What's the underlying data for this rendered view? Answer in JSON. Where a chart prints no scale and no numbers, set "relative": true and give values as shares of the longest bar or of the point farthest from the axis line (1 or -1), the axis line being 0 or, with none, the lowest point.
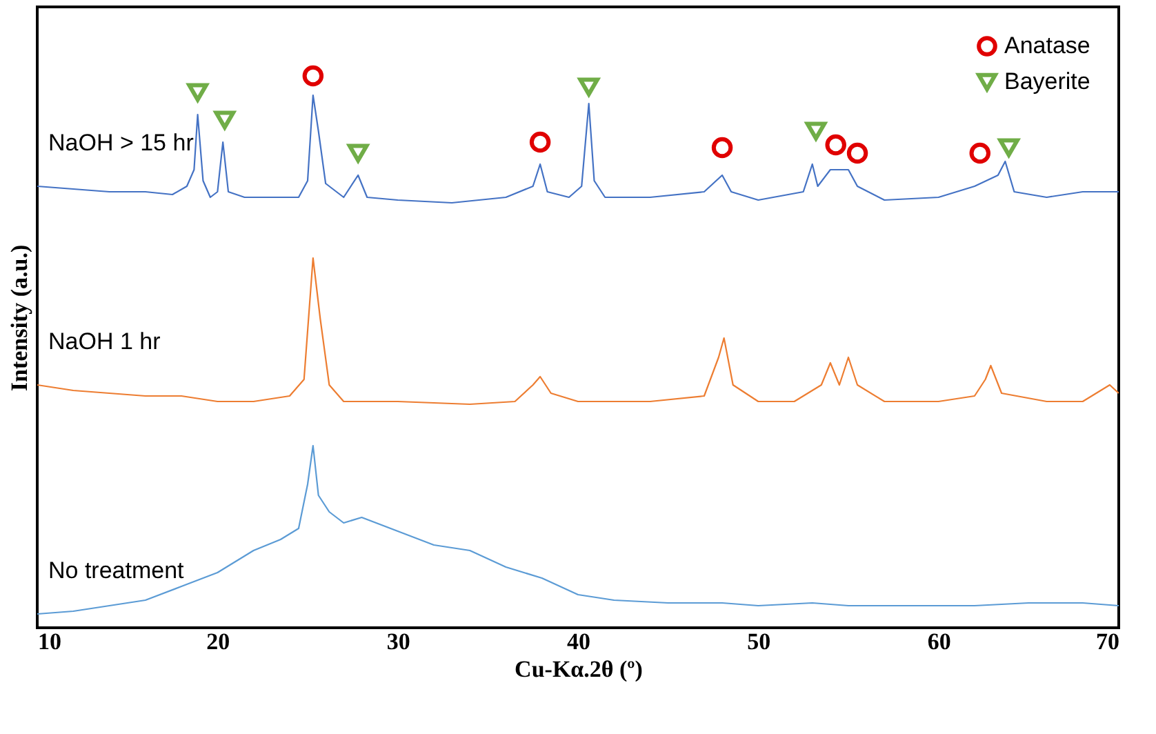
{
  "chart_data": {
    "type": "line",
    "relative": true,
    "xlabel": "Cu-Kα.2θ (º)",
    "ylabel": "Intensity (a.u.)",
    "xlim": [
      10,
      70
    ],
    "xticks": [
      10,
      20,
      30,
      40,
      50,
      60,
      70
    ],
    "grid": false,
    "legend": "top right",
    "series": [
      {
        "name": "NaOH > 15 hr",
        "color": "#4472c4",
        "x": [
          10,
          12,
          14,
          16,
          17.5,
          18.3,
          18.7,
          18.9,
          19.2,
          19.6,
          20.0,
          20.3,
          20.6,
          21.5,
          23,
          24.5,
          25.0,
          25.3,
          25.6,
          26.0,
          27,
          27.8,
          28.3,
          30,
          33,
          36,
          37.5,
          37.9,
          38.3,
          39.5,
          40.2,
          40.6,
          40.9,
          41.5,
          44,
          47,
          48.0,
          48.5,
          50,
          52.5,
          53.0,
          53.3,
          54.0,
          55.0,
          55.5,
          57,
          60,
          62,
          63.3,
          63.7,
          64.2,
          66,
          68,
          70
        ],
        "values": [
          0.8,
          0.795,
          0.79,
          0.79,
          0.785,
          0.8,
          0.83,
          0.93,
          0.81,
          0.78,
          0.79,
          0.88,
          0.79,
          0.78,
          0.78,
          0.78,
          0.81,
          0.965,
          0.9,
          0.805,
          0.78,
          0.82,
          0.78,
          0.775,
          0.77,
          0.78,
          0.8,
          0.84,
          0.79,
          0.78,
          0.8,
          0.95,
          0.81,
          0.78,
          0.78,
          0.79,
          0.82,
          0.79,
          0.775,
          0.79,
          0.84,
          0.8,
          0.83,
          0.83,
          0.8,
          0.775,
          0.78,
          0.8,
          0.82,
          0.845,
          0.79,
          0.78,
          0.79,
          0.79
        ]
      },
      {
        "name": "NaOH 1 hr",
        "color": "#ed7d31",
        "x": [
          10,
          12,
          14,
          16,
          18,
          20,
          22,
          24,
          24.8,
          25.3,
          25.7,
          26.2,
          27,
          30,
          34,
          36.5,
          37.5,
          37.9,
          38.5,
          40,
          44,
          47,
          47.8,
          48.1,
          48.6,
          50,
          52,
          53.5,
          54.0,
          54.5,
          55.0,
          55.5,
          57,
          60,
          62,
          62.6,
          62.9,
          63.5,
          66,
          68,
          69.5,
          70
        ],
        "values": [
          0.44,
          0.43,
          0.425,
          0.42,
          0.42,
          0.41,
          0.41,
          0.42,
          0.45,
          0.67,
          0.56,
          0.44,
          0.41,
          0.41,
          0.405,
          0.41,
          0.44,
          0.455,
          0.425,
          0.41,
          0.41,
          0.42,
          0.49,
          0.525,
          0.44,
          0.41,
          0.41,
          0.44,
          0.48,
          0.44,
          0.49,
          0.44,
          0.41,
          0.41,
          0.42,
          0.45,
          0.475,
          0.425,
          0.41,
          0.41,
          0.44,
          0.425
        ]
      },
      {
        "name": "No treatment",
        "color": "#5b9bd5",
        "x": [
          10,
          12,
          14,
          16,
          18,
          20,
          22,
          23.5,
          24.5,
          25.0,
          25.3,
          25.6,
          26.2,
          27,
          28,
          30,
          32,
          34,
          36,
          38,
          40,
          42,
          45,
          48,
          50,
          53,
          55,
          58,
          62,
          65,
          68,
          70
        ],
        "values": [
          0.025,
          0.03,
          0.04,
          0.05,
          0.075,
          0.1,
          0.14,
          0.16,
          0.18,
          0.26,
          0.33,
          0.24,
          0.21,
          0.19,
          0.2,
          0.175,
          0.15,
          0.14,
          0.11,
          0.09,
          0.06,
          0.05,
          0.045,
          0.045,
          0.04,
          0.045,
          0.04,
          0.04,
          0.04,
          0.045,
          0.045,
          0.04
        ]
      },
      {
        "name": "Anatase",
        "color": "#e00000",
        "type": "scatter",
        "marker": "circle",
        "x": [
          25.3,
          37.9,
          48.0,
          54.3,
          55.5,
          62.3
        ],
        "values": [
          1.0,
          0.88,
          0.87,
          0.875,
          0.86,
          0.86
        ]
      },
      {
        "name": "Bayerite",
        "color": "#70ad47",
        "type": "scatter",
        "marker": "triangle",
        "x": [
          18.9,
          20.4,
          27.8,
          40.6,
          53.2,
          63.9
        ],
        "values": [
          0.97,
          0.92,
          0.86,
          0.98,
          0.9,
          0.87
        ]
      }
    ]
  }
}
